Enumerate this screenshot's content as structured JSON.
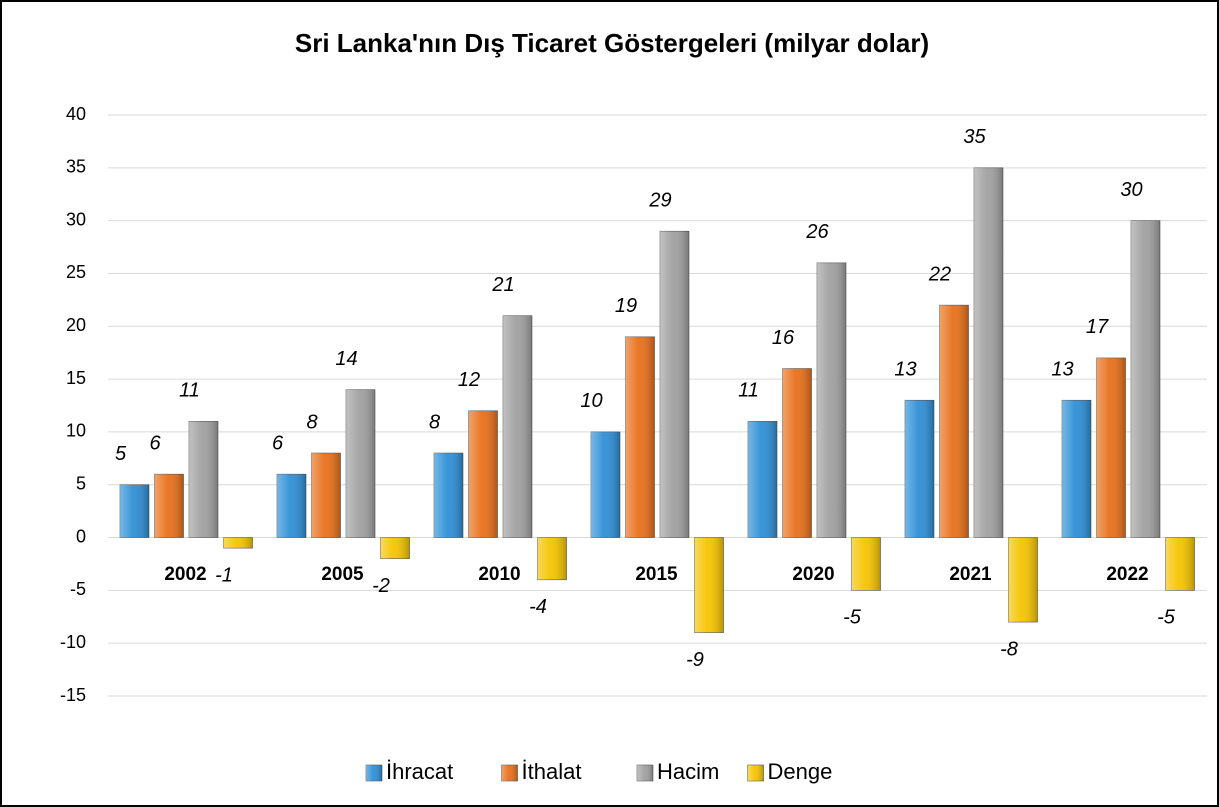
{
  "chart_data": {
    "type": "bar",
    "title": "Sri Lanka'nın Dış Ticaret Göstergeleri  (milyar dolar)",
    "categories": [
      "2002",
      "2005",
      "2010",
      "2015",
      "2020",
      "2021",
      "2022"
    ],
    "series": [
      {
        "name": "İhracat",
        "color": "#2e8fd6",
        "values": [
          5,
          6,
          8,
          10,
          11,
          13,
          13
        ]
      },
      {
        "name": "İthalat",
        "color": "#e8701a",
        "values": [
          6,
          8,
          12,
          19,
          16,
          22,
          17
        ]
      },
      {
        "name": "Hacim",
        "color": "#a0a0a0",
        "values": [
          11,
          14,
          21,
          29,
          26,
          35,
          30
        ]
      },
      {
        "name": "Denge",
        "color": "#f5c400",
        "values": [
          -1,
          -2,
          -4,
          -9,
          -5,
          -8,
          -5
        ]
      }
    ],
    "ylim": [
      -15,
      40
    ],
    "yticks": [
      -15,
      -10,
      -5,
      0,
      5,
      10,
      15,
      20,
      25,
      30,
      35,
      40
    ],
    "grid": true,
    "legend": "bottom"
  }
}
